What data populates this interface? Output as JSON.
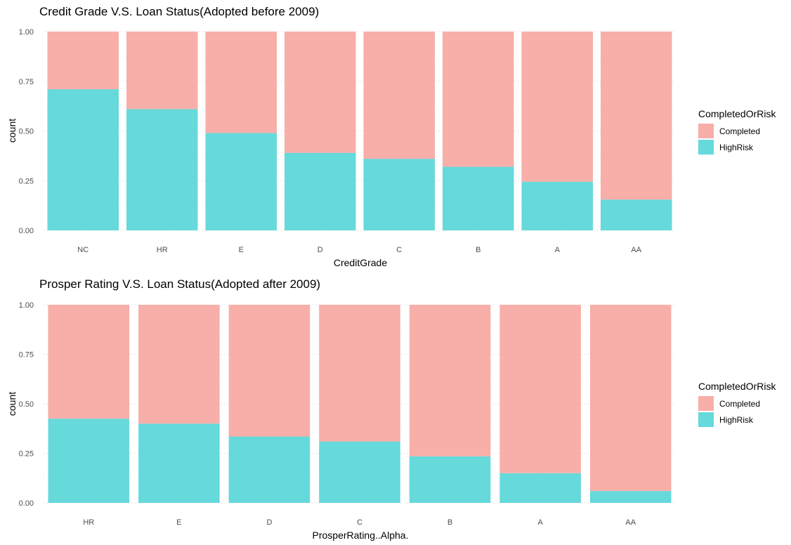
{
  "colors": {
    "Completed": "#F8AEA9",
    "HighRisk": "#66D9DB"
  },
  "chart_data": [
    {
      "type": "bar",
      "stacked": true,
      "title": "Credit Grade V.S. Loan Status(Adopted before 2009)",
      "xlabel": "CreditGrade",
      "ylabel": "count",
      "ylim": [
        0,
        1
      ],
      "yticks": [
        "0.00",
        "0.25",
        "0.50",
        "0.75",
        "1.00"
      ],
      "categories": [
        "NC",
        "HR",
        "E",
        "D",
        "C",
        "B",
        "A",
        "AA"
      ],
      "legend_title": "CompletedOrRisk",
      "legend_position": "right",
      "series": [
        {
          "name": "Completed",
          "values": [
            0.29,
            0.39,
            0.51,
            0.61,
            0.64,
            0.68,
            0.755,
            0.845
          ]
        },
        {
          "name": "HighRisk",
          "values": [
            0.71,
            0.61,
            0.49,
            0.39,
            0.36,
            0.32,
            0.245,
            0.155
          ]
        }
      ]
    },
    {
      "type": "bar",
      "stacked": true,
      "title": "Prosper Rating V.S. Loan Status(Adopted after 2009)",
      "xlabel": "ProsperRating..Alpha.",
      "ylabel": "count",
      "ylim": [
        0,
        1
      ],
      "yticks": [
        "0.00",
        "0.25",
        "0.50",
        "0.75",
        "1.00"
      ],
      "categories": [
        "HR",
        "E",
        "D",
        "C",
        "B",
        "A",
        "AA"
      ],
      "legend_title": "CompletedOrRisk",
      "legend_position": "right",
      "series": [
        {
          "name": "Completed",
          "values": [
            0.575,
            0.6,
            0.665,
            0.69,
            0.765,
            0.85,
            0.94
          ]
        },
        {
          "name": "HighRisk",
          "values": [
            0.425,
            0.4,
            0.335,
            0.31,
            0.235,
            0.15,
            0.06
          ]
        }
      ]
    }
  ]
}
